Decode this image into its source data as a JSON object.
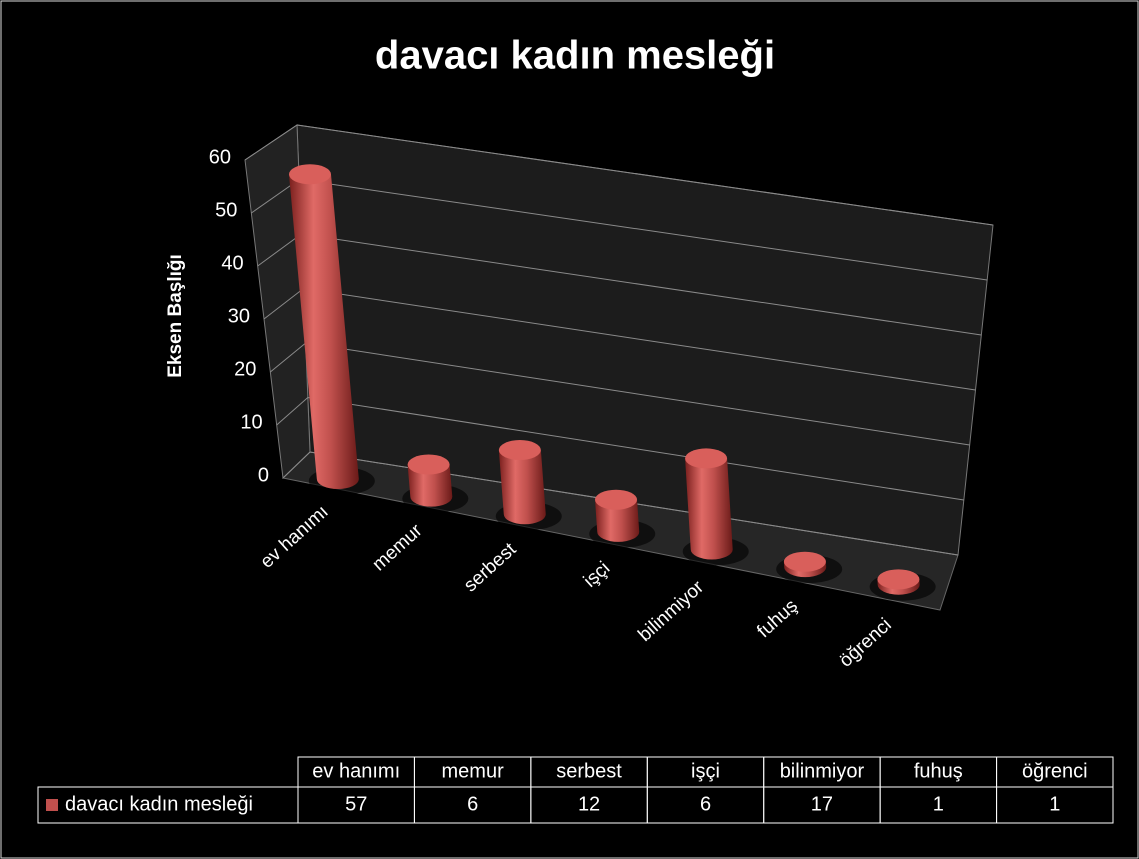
{
  "chart_data": {
    "type": "bar",
    "title": "davacı kadın mesleği",
    "y_label": "Eksen Başlığı",
    "categories": [
      "ev hanımı",
      "memur",
      "serbest",
      "işçi",
      "bilinmiyor",
      "fuhuş",
      "öğrenci"
    ],
    "series": [
      {
        "name": "davacı kadın mesleği",
        "color": "#c0504d",
        "values": [
          57,
          6,
          12,
          6,
          17,
          1,
          1
        ]
      }
    ],
    "ylim": [
      0,
      60
    ],
    "yticks": [
      0,
      10,
      20,
      30,
      40,
      50,
      60
    ],
    "grid": true
  }
}
